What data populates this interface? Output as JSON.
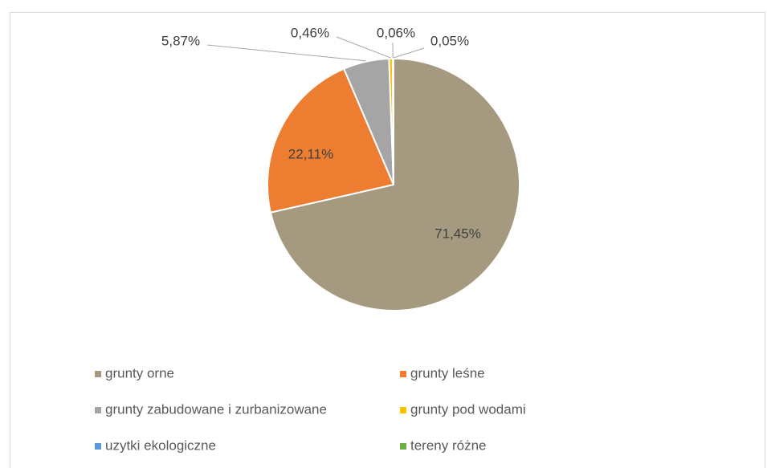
{
  "chart_data": {
    "type": "pie",
    "categories": [
      "grunty orne",
      "grunty leśne",
      "grunty zabudowane i zurbanizowane",
      "grunty pod wodami",
      "uzytki ekologiczne",
      "tereny różne"
    ],
    "values": [
      71.45,
      22.11,
      5.87,
      0.46,
      0.06,
      0.05
    ],
    "value_labels": [
      "71,45%",
      "22,11%",
      "5,87%",
      "0,46%",
      "0,06%",
      "0,05%"
    ],
    "colors": [
      "#a5997f",
      "#ed7d31",
      "#a5a5a5",
      "#ffc000",
      "#5b9bd5",
      "#70ad47"
    ],
    "legend": "bottom"
  }
}
